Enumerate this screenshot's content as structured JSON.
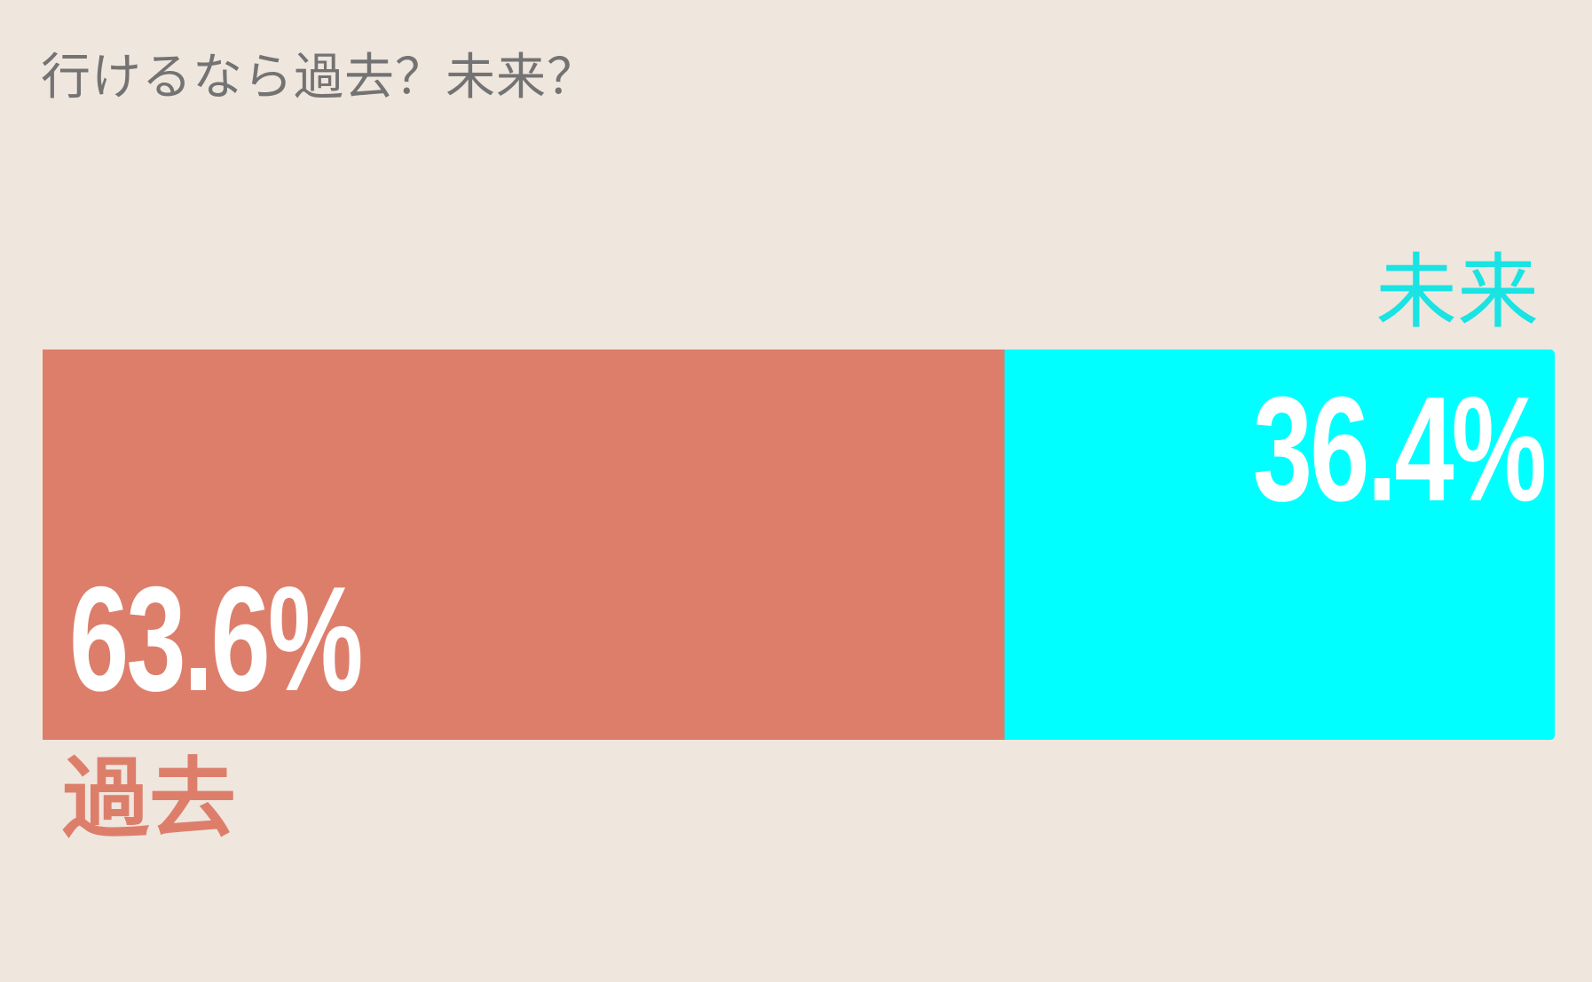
{
  "title": "行けるなら過去？未来？",
  "chart_data": {
    "type": "bar",
    "stacked": true,
    "orientation": "horizontal",
    "title": "行けるなら過去？未来？",
    "series": [
      {
        "name": "過去",
        "value": 63.6,
        "label": "63.6%",
        "color": "#dd7e6b"
      },
      {
        "name": "未来",
        "value": 36.4,
        "label": "36.4%",
        "color": "#00ffff"
      }
    ],
    "total": 100
  }
}
